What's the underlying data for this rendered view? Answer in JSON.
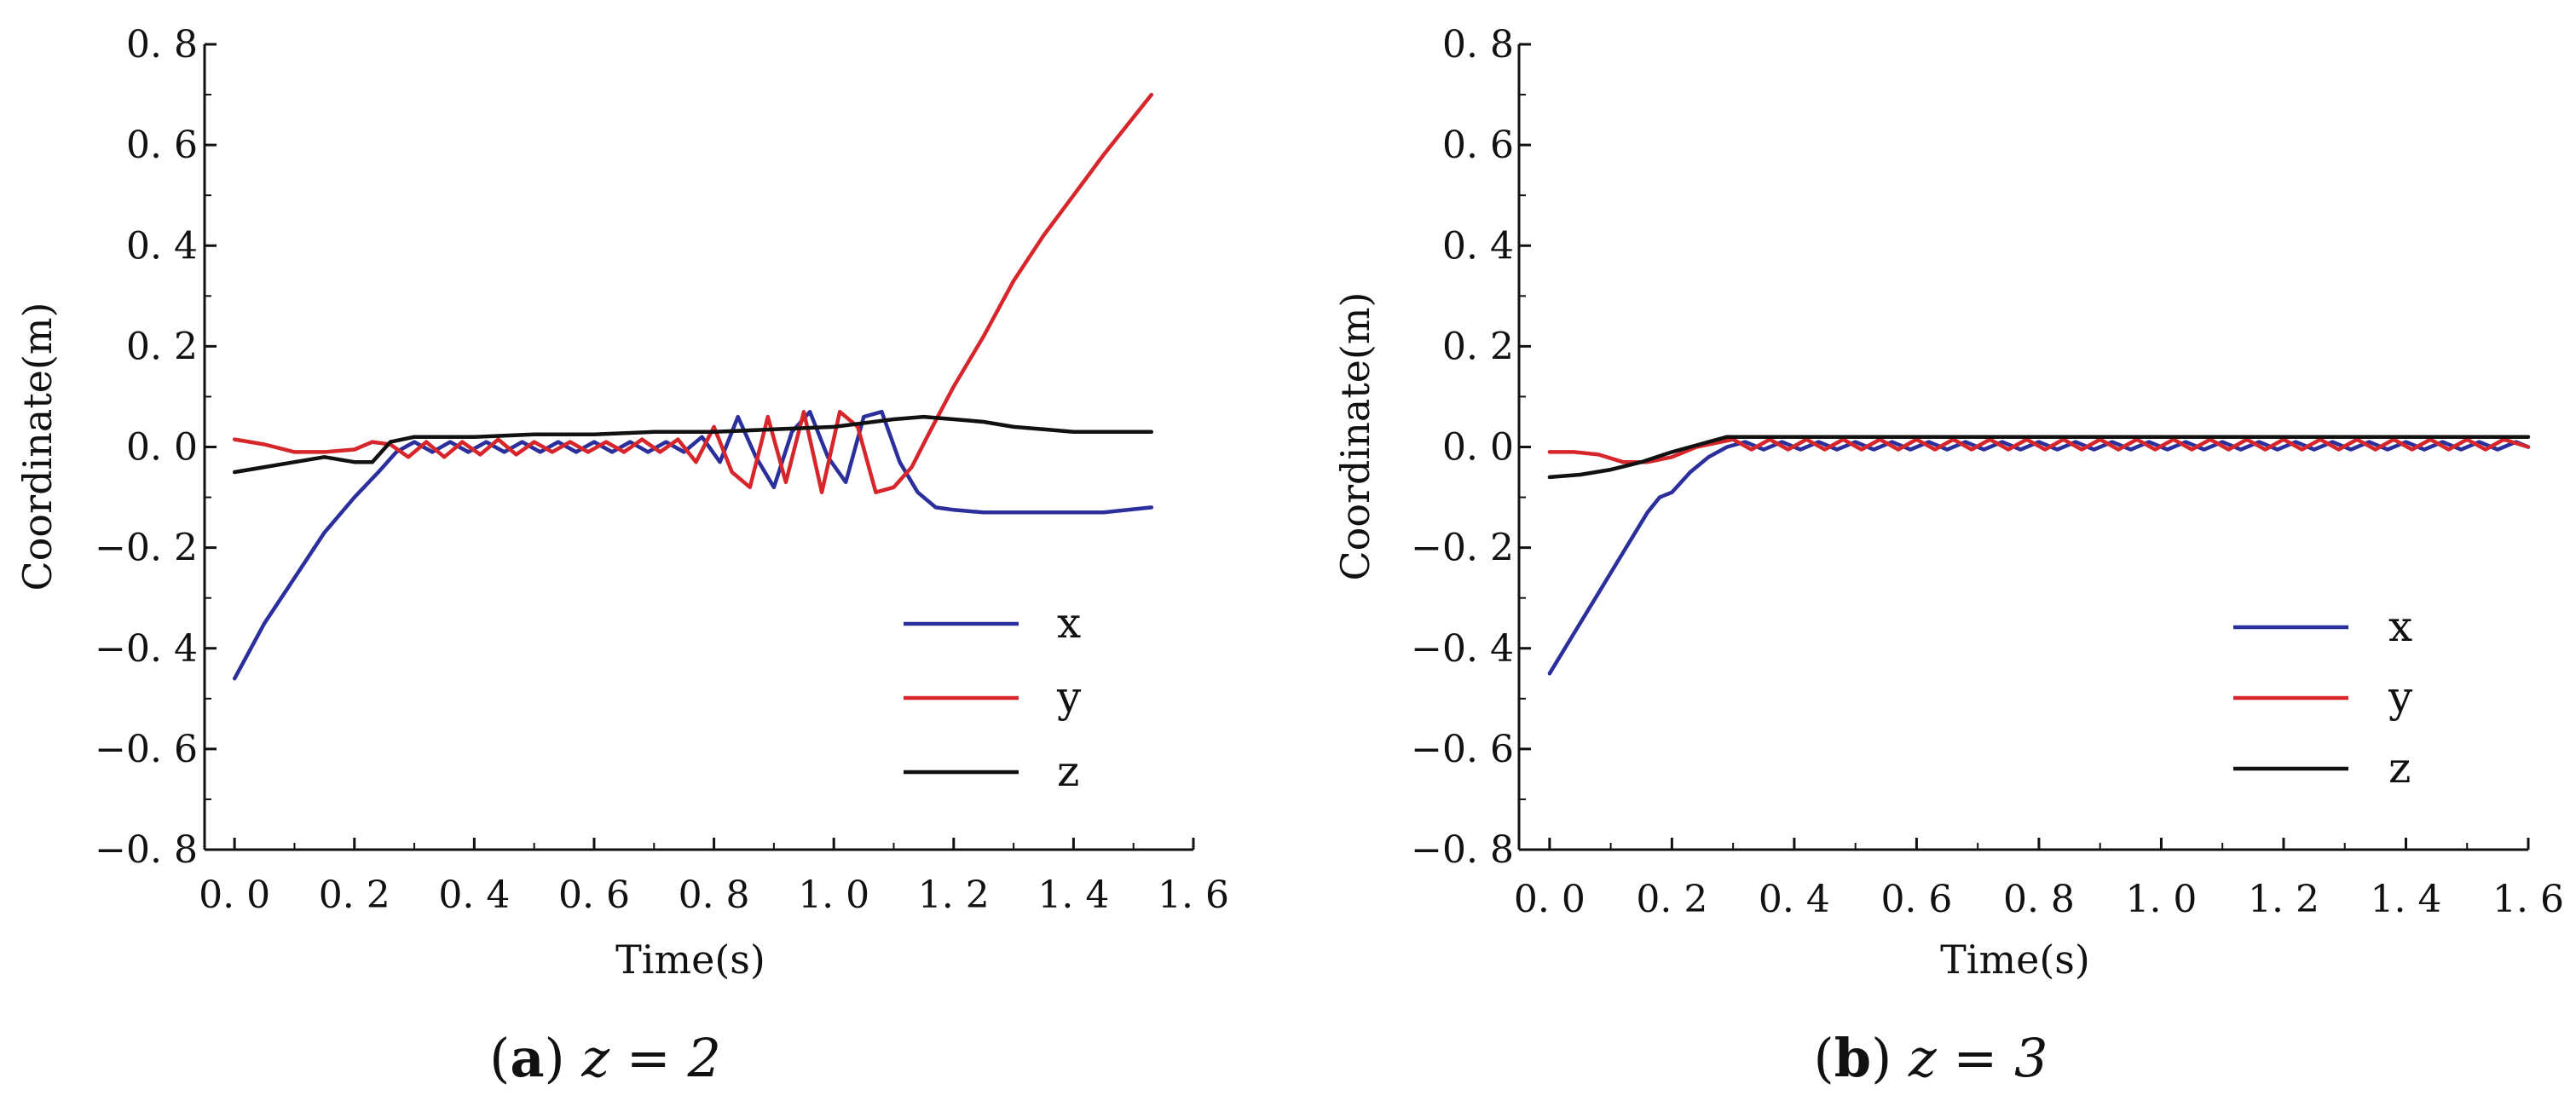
{
  "chart_data": [
    {
      "type": "line",
      "panel": "a",
      "caption_letter": "a",
      "caption_rest": " z = 2",
      "xlabel": "Time(s)",
      "ylabel": "Coordinate(m)",
      "xlim": [
        -0.05,
        1.6
      ],
      "ylim": [
        -0.8,
        0.8
      ],
      "xticks": [
        0.0,
        0.2,
        0.4,
        0.6,
        0.8,
        1.0,
        1.2,
        1.4,
        1.6
      ],
      "xtick_labels": [
        "0. 0",
        "0. 2",
        "0. 4",
        "0. 6",
        "0. 8",
        "1. 0",
        "1. 2",
        "1. 4",
        "1. 6"
      ],
      "yticks": [
        -0.8,
        -0.6,
        -0.4,
        -0.2,
        0.0,
        0.2,
        0.4,
        0.6,
        0.8
      ],
      "ytick_labels": [
        "−0. 8",
        "−0. 6",
        "−0. 4",
        "−0. 2",
        "0. 0",
        "0. 2",
        "0. 4",
        "0. 6",
        "0. 8"
      ],
      "legend_position": "lower-right",
      "series": [
        {
          "name": "x",
          "color": "#2b2f9c",
          "x": [
            0.0,
            0.05,
            0.1,
            0.15,
            0.2,
            0.24,
            0.27,
            0.3,
            0.33,
            0.36,
            0.39,
            0.42,
            0.45,
            0.48,
            0.51,
            0.54,
            0.57,
            0.6,
            0.63,
            0.66,
            0.69,
            0.72,
            0.75,
            0.78,
            0.81,
            0.84,
            0.87,
            0.9,
            0.93,
            0.96,
            0.99,
            1.02,
            1.05,
            1.08,
            1.11,
            1.14,
            1.17,
            1.2,
            1.25,
            1.3,
            1.35,
            1.4,
            1.45,
            1.53
          ],
          "y": [
            -0.46,
            -0.35,
            -0.26,
            -0.17,
            -0.1,
            -0.05,
            -0.01,
            0.01,
            -0.01,
            0.01,
            -0.01,
            0.01,
            -0.01,
            0.01,
            -0.01,
            0.01,
            -0.01,
            0.01,
            -0.01,
            0.01,
            -0.01,
            0.01,
            -0.01,
            0.02,
            -0.03,
            0.06,
            -0.02,
            -0.08,
            0.03,
            0.07,
            -0.02,
            -0.07,
            0.06,
            0.07,
            -0.03,
            -0.09,
            -0.12,
            -0.125,
            -0.13,
            -0.13,
            -0.13,
            -0.13,
            -0.13,
            -0.12
          ]
        },
        {
          "name": "y",
          "color": "#d7262b",
          "x": [
            0.0,
            0.05,
            0.1,
            0.15,
            0.2,
            0.23,
            0.26,
            0.29,
            0.32,
            0.35,
            0.38,
            0.41,
            0.44,
            0.47,
            0.5,
            0.53,
            0.56,
            0.59,
            0.62,
            0.65,
            0.68,
            0.71,
            0.74,
            0.77,
            0.8,
            0.83,
            0.86,
            0.89,
            0.92,
            0.95,
            0.98,
            1.01,
            1.04,
            1.07,
            1.1,
            1.13,
            1.16,
            1.2,
            1.25,
            1.3,
            1.35,
            1.4,
            1.45,
            1.53
          ],
          "y": [
            0.015,
            0.005,
            -0.01,
            -0.01,
            -0.005,
            0.01,
            0.005,
            -0.02,
            0.01,
            -0.02,
            0.01,
            -0.015,
            0.015,
            -0.015,
            0.01,
            -0.01,
            0.01,
            -0.01,
            0.01,
            -0.01,
            0.015,
            -0.01,
            0.015,
            -0.03,
            0.04,
            -0.05,
            -0.08,
            0.06,
            -0.07,
            0.07,
            -0.09,
            0.07,
            0.04,
            -0.09,
            -0.08,
            -0.04,
            0.03,
            0.12,
            0.22,
            0.33,
            0.42,
            0.5,
            0.58,
            0.7
          ]
        },
        {
          "name": "z",
          "color": "#111111",
          "x": [
            0.0,
            0.05,
            0.1,
            0.15,
            0.2,
            0.23,
            0.26,
            0.3,
            0.4,
            0.5,
            0.6,
            0.7,
            0.8,
            0.9,
            1.0,
            1.1,
            1.15,
            1.2,
            1.25,
            1.3,
            1.35,
            1.4,
            1.45,
            1.53
          ],
          "y": [
            -0.05,
            -0.04,
            -0.03,
            -0.02,
            -0.03,
            -0.03,
            0.01,
            0.02,
            0.02,
            0.025,
            0.025,
            0.03,
            0.03,
            0.035,
            0.04,
            0.055,
            0.06,
            0.055,
            0.05,
            0.04,
            0.035,
            0.03,
            0.03,
            0.03
          ]
        }
      ]
    },
    {
      "type": "line",
      "panel": "b",
      "caption_letter": "b",
      "caption_rest": " z = 3",
      "xlabel": "Time(s)",
      "ylabel": "Coordinate(m)",
      "xlim": [
        -0.05,
        1.6
      ],
      "ylim": [
        -0.8,
        0.8
      ],
      "xticks": [
        0.0,
        0.2,
        0.4,
        0.6,
        0.8,
        1.0,
        1.2,
        1.4,
        1.6
      ],
      "xtick_labels": [
        "0. 0",
        "0. 2",
        "0. 4",
        "0. 6",
        "0. 8",
        "1. 0",
        "1. 2",
        "1. 4",
        "1. 6"
      ],
      "yticks": [
        -0.8,
        -0.6,
        -0.4,
        -0.2,
        0.0,
        0.2,
        0.4,
        0.6,
        0.8
      ],
      "ytick_labels": [
        "−0. 8",
        "−0. 6",
        "−0. 4",
        "−0. 2",
        "0. 0",
        "0. 2",
        "0. 4",
        "0. 6",
        "0. 8"
      ],
      "legend_position": "lower-right",
      "series": [
        {
          "name": "x",
          "color": "#2b2f9c",
          "x": [
            0.0,
            0.04,
            0.08,
            0.12,
            0.16,
            0.18,
            0.2,
            0.23,
            0.26,
            0.29,
            0.32,
            0.35,
            0.38,
            0.41,
            0.44,
            0.47,
            0.5,
            0.53,
            0.56,
            0.59,
            0.62,
            0.65,
            0.68,
            0.71,
            0.74,
            0.77,
            0.8,
            0.83,
            0.86,
            0.89,
            0.92,
            0.95,
            0.98,
            1.01,
            1.04,
            1.07,
            1.1,
            1.13,
            1.16,
            1.19,
            1.22,
            1.25,
            1.28,
            1.31,
            1.34,
            1.37,
            1.4,
            1.43,
            1.46,
            1.49,
            1.52,
            1.55,
            1.58,
            1.6
          ],
          "y": [
            -0.45,
            -0.37,
            -0.29,
            -0.21,
            -0.13,
            -0.1,
            -0.09,
            -0.05,
            -0.02,
            0.0,
            0.01,
            -0.005,
            0.01,
            -0.005,
            0.01,
            -0.005,
            0.01,
            -0.005,
            0.01,
            -0.005,
            0.01,
            -0.005,
            0.01,
            -0.005,
            0.01,
            -0.005,
            0.01,
            -0.005,
            0.01,
            -0.005,
            0.01,
            -0.005,
            0.01,
            -0.005,
            0.01,
            -0.005,
            0.01,
            -0.005,
            0.01,
            -0.005,
            0.01,
            -0.005,
            0.01,
            -0.005,
            0.01,
            -0.005,
            0.01,
            -0.005,
            0.01,
            -0.005,
            0.01,
            -0.005,
            0.01,
            0.0
          ]
        },
        {
          "name": "y",
          "color": "#d7262b",
          "x": [
            0.0,
            0.04,
            0.08,
            0.12,
            0.16,
            0.2,
            0.24,
            0.28,
            0.3,
            0.33,
            0.36,
            0.39,
            0.42,
            0.45,
            0.48,
            0.51,
            0.54,
            0.57,
            0.6,
            0.63,
            0.66,
            0.69,
            0.72,
            0.75,
            0.78,
            0.81,
            0.84,
            0.87,
            0.9,
            0.93,
            0.96,
            0.99,
            1.02,
            1.05,
            1.08,
            1.11,
            1.14,
            1.17,
            1.2,
            1.23,
            1.26,
            1.29,
            1.32,
            1.35,
            1.38,
            1.41,
            1.44,
            1.47,
            1.5,
            1.53,
            1.56,
            1.6
          ],
          "y": [
            -0.01,
            -0.01,
            -0.015,
            -0.03,
            -0.03,
            -0.02,
            0.0,
            0.01,
            0.015,
            -0.005,
            0.015,
            -0.005,
            0.015,
            -0.005,
            0.015,
            -0.005,
            0.015,
            -0.005,
            0.015,
            -0.005,
            0.015,
            -0.005,
            0.015,
            -0.005,
            0.015,
            -0.005,
            0.015,
            -0.005,
            0.015,
            -0.005,
            0.015,
            -0.005,
            0.015,
            -0.005,
            0.015,
            -0.005,
            0.015,
            -0.005,
            0.015,
            -0.005,
            0.015,
            -0.005,
            0.015,
            -0.005,
            0.015,
            -0.005,
            0.015,
            -0.005,
            0.015,
            -0.005,
            0.015,
            0.0
          ]
        },
        {
          "name": "z",
          "color": "#111111",
          "x": [
            0.0,
            0.05,
            0.1,
            0.15,
            0.2,
            0.23,
            0.26,
            0.29,
            0.32,
            0.4,
            0.6,
            0.8,
            1.0,
            1.2,
            1.4,
            1.6
          ],
          "y": [
            -0.06,
            -0.055,
            -0.045,
            -0.03,
            -0.01,
            0.0,
            0.01,
            0.02,
            0.02,
            0.02,
            0.02,
            0.02,
            0.02,
            0.02,
            0.02,
            0.02
          ]
        }
      ]
    }
  ]
}
